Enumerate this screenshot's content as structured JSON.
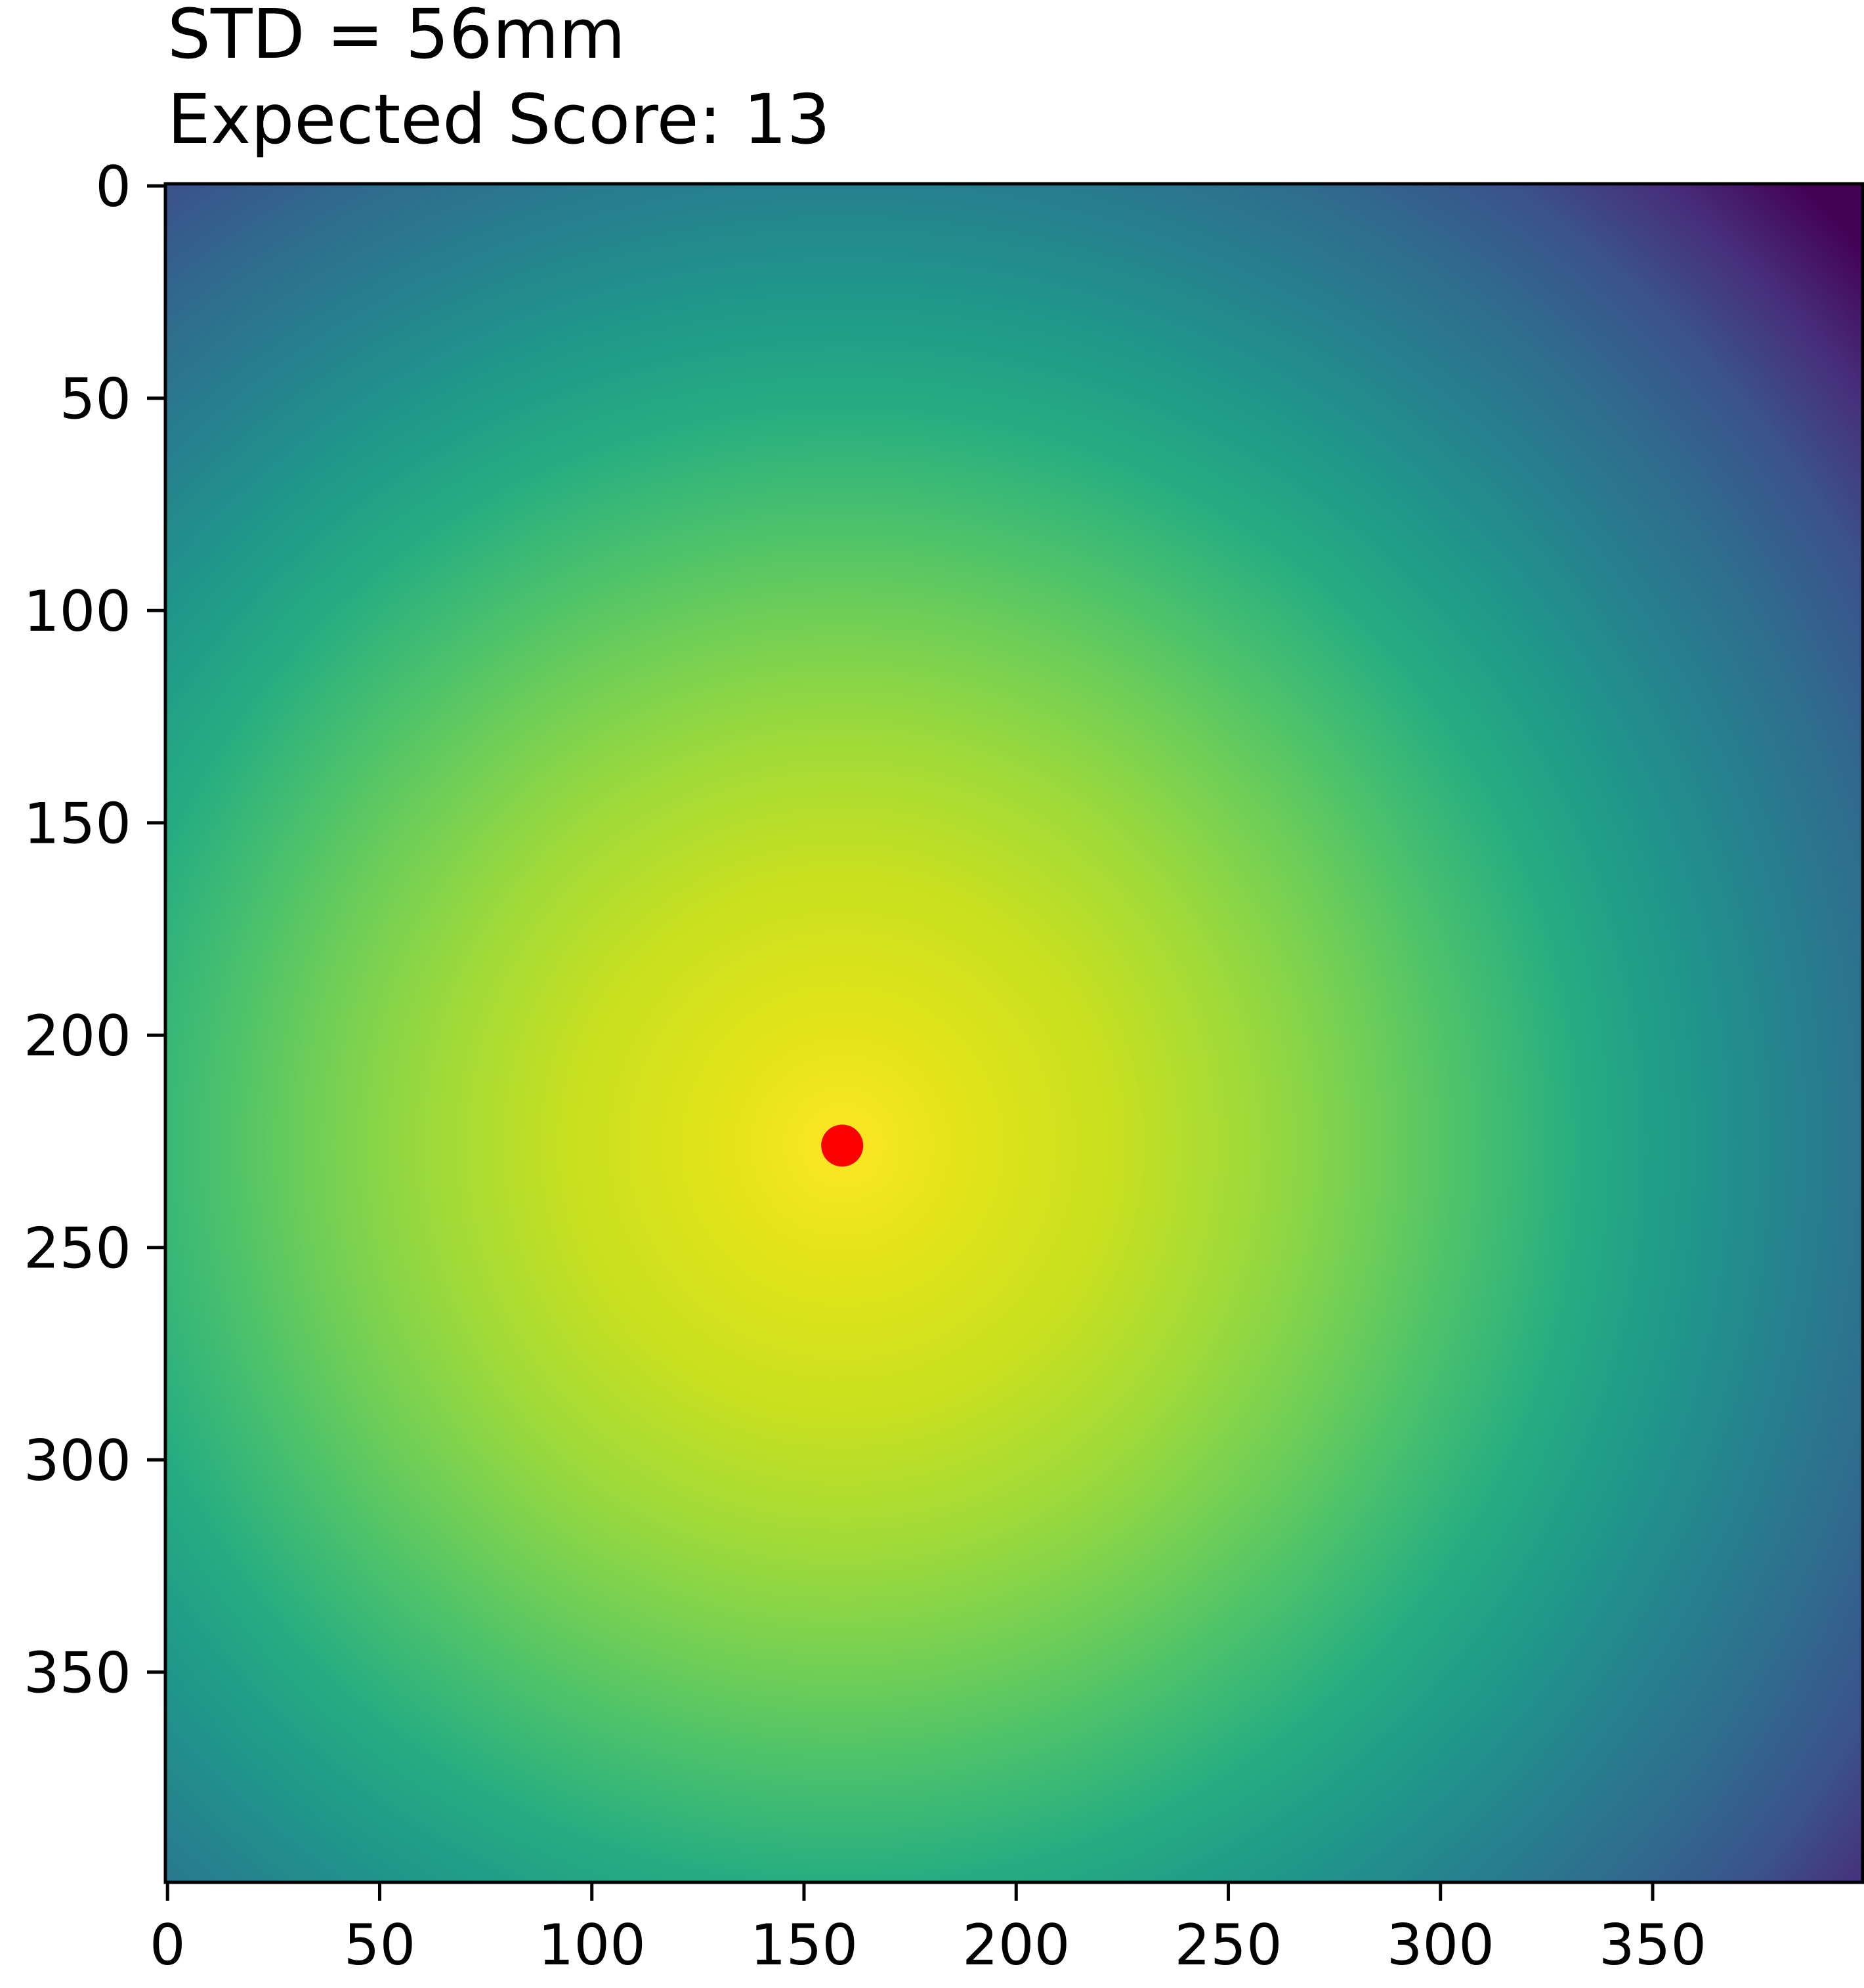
{
  "chart_data": {
    "type": "heatmap",
    "title_lines": [
      "STD = 56mm",
      "Expected Score: 13"
    ],
    "xlabel": "",
    "ylabel": "",
    "xlim": [
      -0.5,
      399.5
    ],
    "ylim": [
      399.5,
      -0.5
    ],
    "y_axis_inverted": true,
    "x_ticks": [
      0,
      50,
      100,
      150,
      200,
      250,
      300,
      350
    ],
    "y_ticks": [
      0,
      50,
      100,
      150,
      200,
      250,
      300,
      350
    ],
    "x_tick_labels": [
      "0",
      "50",
      "100",
      "150",
      "200",
      "250",
      "300",
      "350"
    ],
    "y_tick_labels": [
      "0",
      "50",
      "100",
      "150",
      "200",
      "250",
      "300",
      "350"
    ],
    "colormap": "viridis",
    "heatmap_peak": {
      "x": 159,
      "y": 226
    },
    "grid": false,
    "legend": "none",
    "markers": [
      {
        "x": 159,
        "y": 226,
        "color": "#ff0000"
      }
    ]
  }
}
